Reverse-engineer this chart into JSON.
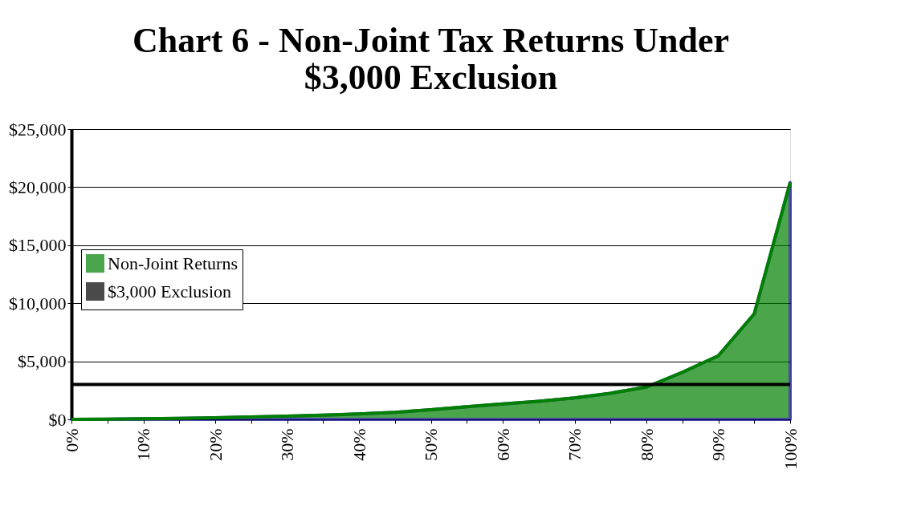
{
  "chart_data": {
    "type": "area",
    "title": [
      "Chart 6 - Non-Joint Tax Returns Under",
      "$3,000 Exclusion"
    ],
    "x": [
      0,
      5,
      10,
      15,
      20,
      25,
      30,
      35,
      40,
      45,
      50,
      55,
      60,
      65,
      70,
      75,
      80,
      85,
      90,
      95,
      100
    ],
    "series": [
      {
        "name": "Non-Joint Returns",
        "color": "#008000",
        "values": [
          0,
          20,
          50,
          90,
          140,
          200,
          280,
          360,
          460,
          600,
          830,
          1080,
          1330,
          1560,
          1840,
          2250,
          2780,
          4050,
          5470,
          9080,
          20400
        ]
      }
    ],
    "xlim": [
      0,
      100
    ],
    "xticks": [
      {
        "value": 0,
        "label": "0%"
      },
      {
        "value": 5,
        "label": null
      },
      {
        "value": 10,
        "label": "10%"
      },
      {
        "value": 15,
        "label": null
      },
      {
        "value": 20,
        "label": "20%"
      },
      {
        "value": 25,
        "label": null
      },
      {
        "value": 30,
        "label": "30%"
      },
      {
        "value": 35,
        "label": null
      },
      {
        "value": 40,
        "label": "40%"
      },
      {
        "value": 45,
        "label": null
      },
      {
        "value": 50,
        "label": "50%"
      },
      {
        "value": 55,
        "label": null
      },
      {
        "value": 60,
        "label": "60%"
      },
      {
        "value": 65,
        "label": null
      },
      {
        "value": 70,
        "label": "70%"
      },
      {
        "value": 75,
        "label": null
      },
      {
        "value": 80,
        "label": "80%"
      },
      {
        "value": 85,
        "label": null
      },
      {
        "value": 90,
        "label": "90%"
      },
      {
        "value": 95,
        "label": null
      },
      {
        "value": 100,
        "label": "100%"
      }
    ],
    "ylim": [
      0,
      25000
    ],
    "yticks": [
      {
        "value": 0,
        "label": "$0"
      },
      {
        "value": 5000,
        "label": "$5,000"
      },
      {
        "value": 10000,
        "label": "$10,000"
      },
      {
        "value": 15000,
        "label": "$15,000"
      },
      {
        "value": 20000,
        "label": "$20,000"
      },
      {
        "value": 25000,
        "label": "$25,000"
      }
    ],
    "ref_lines": [
      {
        "axis": "y",
        "value": 3000,
        "label": "$3,000 Exclusion",
        "color": "#000000"
      }
    ],
    "grid": "y",
    "legend": "left"
  }
}
